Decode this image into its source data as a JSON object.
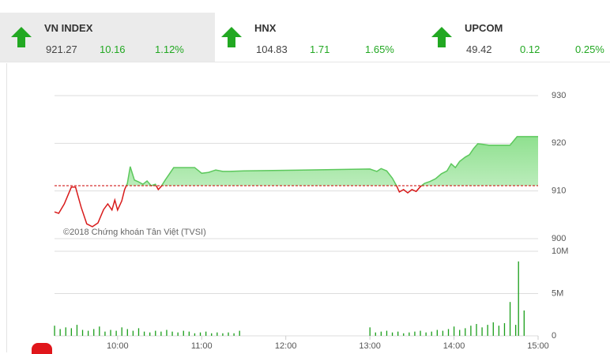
{
  "indices": [
    {
      "name": "VN INDEX",
      "value": 921.27,
      "change": 10.16,
      "percent": "1.12%"
    },
    {
      "name": "HNX",
      "value": 104.83,
      "change": 1.71,
      "percent": "1.65%"
    },
    {
      "name": "UPCOM",
      "value": 49.42,
      "change": 0.12,
      "percent": "0.25%"
    }
  ],
  "chart_data": [
    {
      "type": "line",
      "annotation": "©2018 Chứng khoán Tân Việt (TVSI)",
      "reference": 911.11,
      "x": [
        "09:15",
        "09:18",
        "09:22",
        "09:27",
        "09:30",
        "09:34",
        "09:38",
        "09:42",
        "09:46",
        "09:50",
        "09:53",
        "09:56",
        "09:58",
        "10:00",
        "10:03",
        "10:05",
        "10:07",
        "10:09",
        "10:12",
        "10:15",
        "10:18",
        "10:21",
        "10:24",
        "10:27",
        "10:29",
        "10:31",
        "10:34",
        "10:37",
        "10:40",
        "10:47",
        "10:55",
        "11:00",
        "11:05",
        "11:10",
        "11:15",
        "11:20",
        "11:30",
        "13:00",
        "13:05",
        "13:08",
        "13:12",
        "13:16",
        "13:19",
        "13:21",
        "13:24",
        "13:27",
        "13:30",
        "13:33",
        "13:36",
        "13:39",
        "13:43",
        "13:47",
        "13:51",
        "13:55",
        "13:58",
        "14:01",
        "14:04",
        "14:08",
        "14:11",
        "14:14",
        "14:17",
        "14:20",
        "14:25",
        "14:30",
        "14:35",
        "14:40",
        "14:45",
        "15:00"
      ],
      "series": [
        {
          "name": "VN INDEX",
          "color": "#d81b1b",
          "color_up": "#5cc85c",
          "values": [
            905.6,
            905.3,
            907.3,
            910.8,
            910.8,
            906.6,
            903.1,
            902.5,
            903.3,
            906.1,
            907.3,
            906.0,
            908.1,
            906.0,
            907.9,
            910.3,
            911.6,
            915.1,
            912.3,
            911.9,
            911.4,
            912.1,
            911.1,
            911.4,
            910.3,
            910.9,
            912.3,
            913.6,
            914.9,
            914.9,
            914.9,
            913.7,
            913.9,
            914.4,
            914.1,
            914.1,
            914.2,
            914.6,
            914.1,
            914.7,
            914.2,
            912.7,
            911.1,
            909.8,
            910.3,
            909.6,
            910.3,
            909.9,
            910.9,
            911.6,
            912.0,
            912.6,
            913.6,
            914.2,
            915.7,
            914.9,
            916.2,
            917.1,
            917.6,
            918.9,
            919.9,
            919.8,
            919.6,
            919.6,
            919.6,
            919.6,
            921.4,
            921.4
          ]
        }
      ],
      "xlim": [
        "09:15",
        "15:00"
      ],
      "ylim": [
        900,
        930
      ],
      "yticks": [
        900,
        910,
        920,
        930
      ],
      "grid": true
    },
    {
      "type": "bar",
      "x": [
        "09:15",
        "09:19",
        "09:23",
        "09:27",
        "09:31",
        "09:35",
        "09:39",
        "09:43",
        "09:47",
        "09:51",
        "09:55",
        "09:59",
        "10:03",
        "10:07",
        "10:11",
        "10:15",
        "10:19",
        "10:23",
        "10:27",
        "10:31",
        "10:35",
        "10:39",
        "10:43",
        "10:47",
        "10:51",
        "10:55",
        "10:59",
        "11:03",
        "11:07",
        "11:11",
        "11:15",
        "11:19",
        "11:23",
        "11:27",
        "13:00",
        "13:04",
        "13:08",
        "13:12",
        "13:16",
        "13:20",
        "13:24",
        "13:28",
        "13:32",
        "13:36",
        "13:40",
        "13:44",
        "13:48",
        "13:52",
        "13:56",
        "14:00",
        "14:04",
        "14:08",
        "14:12",
        "14:16",
        "14:20",
        "14:24",
        "14:28",
        "14:32",
        "14:36",
        "14:40",
        "14:44",
        "14:46",
        "14:50"
      ],
      "values": [
        1.2,
        0.8,
        1.0,
        0.9,
        1.3,
        0.7,
        0.6,
        0.8,
        1.1,
        0.5,
        0.7,
        0.6,
        1.0,
        0.8,
        0.6,
        0.9,
        0.5,
        0.4,
        0.6,
        0.5,
        0.7,
        0.5,
        0.4,
        0.6,
        0.5,
        0.3,
        0.4,
        0.5,
        0.3,
        0.4,
        0.3,
        0.4,
        0.3,
        0.6,
        1.0,
        0.4,
        0.5,
        0.6,
        0.4,
        0.5,
        0.3,
        0.4,
        0.5,
        0.6,
        0.4,
        0.5,
        0.7,
        0.6,
        0.8,
        1.1,
        0.7,
        0.9,
        1.2,
        1.4,
        1.0,
        1.3,
        1.6,
        1.2,
        1.5,
        4.0,
        1.3,
        8.8,
        3.0
      ],
      "color": "#1a9e1a",
      "xlim": [
        "09:15",
        "15:00"
      ],
      "ylim": [
        0,
        10
      ],
      "yticks": [
        0,
        {
          "value": 5,
          "label": "5M"
        },
        {
          "value": 10,
          "label": "10M"
        }
      ],
      "xticks": [
        "10:00",
        "11:00",
        "12:00",
        "13:00",
        "14:00",
        "15:00"
      ],
      "grid": true
    }
  ]
}
